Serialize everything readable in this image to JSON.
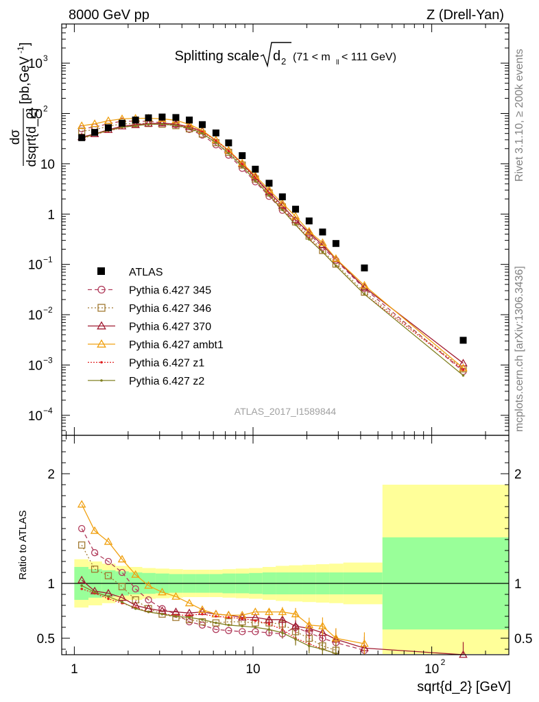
{
  "header": {
    "left": "8000 GeV pp",
    "right": "Z (Drell-Yan)"
  },
  "plot_title": {
    "main": "Splitting scale",
    "sym": "d",
    "sub": "2",
    "range": "(71 < m",
    "range_sub": "ll",
    "range_end": " < 111 GeV)"
  },
  "side_labels": {
    "rivet": "Rivet 3.1.10, ≥ 200k events",
    "mcplots": "mcplots.cern.ch [arXiv:1306.3436]"
  },
  "watermark": "ATLAS_2017_I1589844",
  "y_axis_top": {
    "num": "dσ",
    "den": "dsqrt{d_2}",
    "unit": "[pb,GeV",
    "unit_sup": "-1",
    "unit_end": "]"
  },
  "y_axis_bottom": "Ratio to ATLAS",
  "x_axis": "sqrt{d_2} [GeV]",
  "top_ticks": [
    {
      "exp": 3,
      "label": "10",
      "sup": "3"
    },
    {
      "exp": 2,
      "label": "10",
      "sup": "2"
    },
    {
      "exp": 1,
      "label": "10",
      "sup": ""
    },
    {
      "exp": 0,
      "label": "1",
      "sup": ""
    },
    {
      "exp": -1,
      "label": "10",
      "sup": "−1"
    },
    {
      "exp": -2,
      "label": "10",
      "sup": "−2"
    },
    {
      "exp": -3,
      "label": "10",
      "sup": "−3"
    },
    {
      "exp": -4,
      "label": "10",
      "sup": "−4"
    }
  ],
  "ratio_ticks": [
    {
      "v": 2,
      "label": "2"
    },
    {
      "v": 1,
      "label": "1"
    },
    {
      "v": 0.5,
      "label": "0.5"
    }
  ],
  "x_ticks": [
    {
      "v": 1,
      "label": "1",
      "sup": ""
    },
    {
      "v": 10,
      "label": "10",
      "sup": ""
    },
    {
      "v": 100,
      "label": "10",
      "sup": "2"
    }
  ],
  "colors": {
    "band_outer": "#ffff99",
    "band_inner": "#99ff99"
  },
  "chart_data": {
    "type": "scatter",
    "x_scale": "log",
    "xlim": [
      0.85,
      270
    ],
    "top_ylim": [
      4e-05,
      6000
    ],
    "ratio_ylim": [
      0.35,
      2.35
    ],
    "x": [
      1.1,
      1.3,
      1.55,
      1.85,
      2.2,
      2.6,
      3.1,
      3.7,
      4.4,
      5.2,
      6.2,
      7.3,
      8.7,
      10.3,
      12.3,
      14.6,
      17.3,
      20.6,
      24.5,
      29.1,
      42,
      150
    ],
    "atlas": [
      33,
      42,
      52,
      64,
      74,
      82,
      85,
      83,
      74,
      60,
      41,
      26,
      14.5,
      7.8,
      4.1,
      2.2,
      1.25,
      0.73,
      0.44,
      0.26,
      0.085,
      0.0031
    ],
    "band_edges": [
      1.0,
      1.2,
      1.43,
      1.7,
      2.02,
      2.4,
      2.85,
      3.4,
      4.05,
      4.8,
      5.7,
      6.75,
      8.0,
      9.5,
      11.3,
      13.4,
      15.9,
      18.9,
      22.5,
      26.7,
      32,
      53,
      270
    ],
    "band_inner": [
      0.15,
      0.13,
      0.12,
      0.11,
      0.1,
      0.095,
      0.09,
      0.085,
      0.085,
      0.085,
      0.085,
      0.09,
      0.09,
      0.095,
      0.1,
      0.1,
      0.1,
      0.1,
      0.1,
      0.1,
      0.1,
      0.42
    ],
    "band_outer": [
      0.22,
      0.2,
      0.18,
      0.16,
      0.15,
      0.14,
      0.135,
      0.13,
      0.125,
      0.125,
      0.125,
      0.13,
      0.135,
      0.14,
      0.15,
      0.16,
      0.165,
      0.17,
      0.175,
      0.18,
      0.19,
      0.9
    ],
    "series": [
      {
        "name": "Pythia 6.427 345",
        "color": "#b03a5a",
        "marker": "circle",
        "dash": "6,4",
        "ratio": [
          1.5,
          1.28,
          1.2,
          1.1,
          0.95,
          0.85,
          0.77,
          0.72,
          0.65,
          0.62,
          0.58,
          0.57,
          0.56,
          0.56,
          0.55,
          0.54,
          0.6,
          0.55,
          0.5,
          0.46,
          0.39,
          0.24
        ]
      },
      {
        "name": "Pythia 6.427 346",
        "color": "#a07830",
        "marker": "square",
        "dash": "2,3",
        "ratio": [
          1.35,
          1.13,
          1.07,
          0.97,
          0.85,
          0.77,
          0.72,
          0.69,
          0.67,
          0.65,
          0.64,
          0.65,
          0.65,
          0.64,
          0.64,
          0.63,
          0.56,
          0.5,
          0.43,
          0.39,
          0.33,
          0.27
        ]
      },
      {
        "name": "Pythia 6.427 370",
        "color": "#a01a30",
        "marker": "triangle",
        "dash": "",
        "ratio": [
          1.03,
          0.93,
          0.91,
          0.87,
          0.8,
          0.77,
          0.75,
          0.74,
          0.73,
          0.74,
          0.72,
          0.71,
          0.69,
          0.69,
          0.67,
          0.67,
          0.61,
          0.59,
          0.55,
          0.49,
          0.41,
          0.35
        ]
      },
      {
        "name": "Pythia 6.427 ambt1",
        "color": "#f0a010",
        "marker": "triangle",
        "dash": "",
        "ratio": [
          1.72,
          1.48,
          1.38,
          1.22,
          1.08,
          0.98,
          0.92,
          0.88,
          0.82,
          0.76,
          0.72,
          0.71,
          0.71,
          0.74,
          0.74,
          0.74,
          0.72,
          0.62,
          0.61,
          0.5,
          0.45,
          0.28
        ]
      },
      {
        "name": "Pythia 6.427 z1",
        "color": "#e02020",
        "marker": "dot",
        "dash": "2,2",
        "ratio": [
          0.95,
          0.91,
          0.86,
          0.82,
          0.78,
          0.74,
          0.72,
          0.71,
          0.71,
          0.72,
          0.7,
          0.69,
          0.68,
          0.66,
          0.63,
          0.58,
          0.5,
          0.45,
          0.4,
          0.36,
          0.3,
          0.26
        ]
      },
      {
        "name": "Pythia 6.427 z2",
        "color": "#808020",
        "marker": "dot",
        "dash": "",
        "ratio": [
          0.98,
          0.92,
          0.88,
          0.83,
          0.77,
          0.74,
          0.72,
          0.7,
          0.69,
          0.67,
          0.64,
          0.62,
          0.61,
          0.6,
          0.58,
          0.55,
          0.49,
          0.43,
          0.4,
          0.36,
          0.3,
          0.2
        ]
      }
    ]
  },
  "legend": {
    "atlas": "ATLAS",
    "placement": "center-left"
  }
}
